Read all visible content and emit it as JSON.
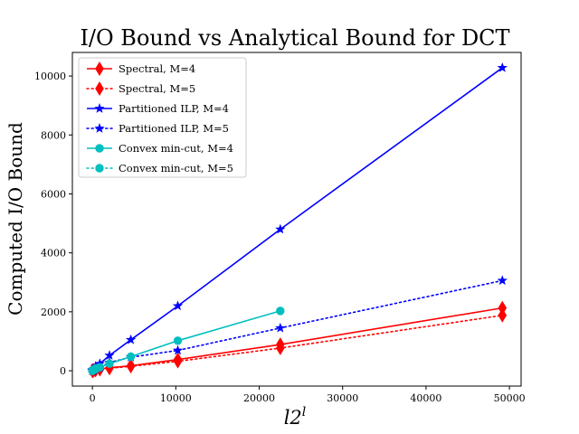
{
  "chart_data": {
    "type": "line",
    "title": "I/O Bound vs Analytical Bound for DCT",
    "xlabel": "l2",
    "xlabel_superscript": "l",
    "ylabel": "Computed I/O Bound",
    "xlim": [
      -2400,
      51400
    ],
    "ylim": [
      -520,
      10800
    ],
    "xticks": [
      0,
      10000,
      20000,
      30000,
      40000,
      50000
    ],
    "xtick_labels": [
      "0",
      "10000",
      "20000",
      "30000",
      "40000",
      "50000"
    ],
    "yticks": [
      0,
      2000,
      4000,
      6000,
      8000,
      10000
    ],
    "ytick_labels": [
      "0",
      "2000",
      "4000",
      "6000",
      "8000",
      "10000"
    ],
    "grid": false,
    "legend_position": "top-left",
    "series": [
      {
        "name": "Spectral, M=4",
        "color": "#ff0000",
        "linestyle": "solid",
        "marker": "thin-diamond",
        "x": [
          2,
          8,
          24,
          64,
          160,
          384,
          896,
          2048,
          4608,
          10240,
          22528,
          49152
        ],
        "y": [
          1,
          2,
          4,
          8,
          16,
          30,
          60,
          100,
          170,
          380,
          890,
          2130
        ]
      },
      {
        "name": "Spectral, M=5",
        "color": "#ff0000",
        "linestyle": "dotted",
        "marker": "thin-diamond",
        "x": [
          2,
          8,
          24,
          64,
          160,
          384,
          896,
          2048,
          4608,
          10240,
          22528,
          49152
        ],
        "y": [
          0,
          1,
          2,
          5,
          10,
          20,
          45,
          85,
          150,
          320,
          770,
          1880
        ]
      },
      {
        "name": "Partitioned ILP, M=4",
        "color": "#0000ff",
        "linestyle": "solid",
        "marker": "star",
        "x": [
          2,
          8,
          24,
          64,
          160,
          384,
          896,
          2048,
          4608,
          10240,
          22528,
          49152
        ],
        "y": [
          2,
          6,
          14,
          30,
          60,
          150,
          240,
          520,
          1050,
          2200,
          4800,
          10280
        ]
      },
      {
        "name": "Partitioned ILP, M=5",
        "color": "#0000ff",
        "linestyle": "dotted",
        "marker": "star",
        "x": [
          2,
          8,
          24,
          64,
          160,
          384,
          896,
          2048,
          4608,
          10240,
          22528,
          49152
        ],
        "y": [
          1,
          3,
          7,
          15,
          30,
          60,
          120,
          280,
          460,
          690,
          1450,
          3060
        ]
      },
      {
        "name": "Convex min-cut, M=4",
        "color": "#00bfbf",
        "linestyle": "solid",
        "marker": "circle",
        "x": [
          2,
          8,
          24,
          64,
          160,
          384,
          896,
          2048,
          4608,
          10240,
          22528
        ],
        "y": [
          1,
          4,
          10,
          20,
          40,
          80,
          120,
          240,
          480,
          1020,
          2030
        ]
      },
      {
        "name": "Convex min-cut, M=5",
        "color": "#00bfbf",
        "linestyle": "dotted",
        "marker": "circle",
        "x": [
          2,
          8,
          24,
          64,
          160,
          384
        ],
        "y": [
          0,
          2,
          5,
          10,
          25,
          55
        ]
      }
    ]
  }
}
